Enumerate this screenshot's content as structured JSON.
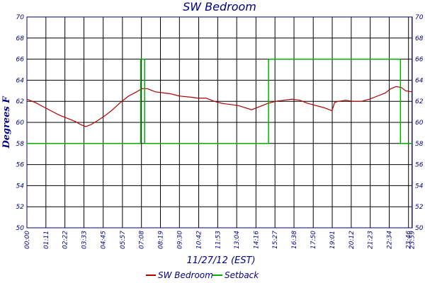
{
  "chart_data": {
    "type": "line",
    "title": "SW Bedroom",
    "ylabel": "Degrees F",
    "xlabel": "11/27/12 (EST)",
    "ylim": [
      50,
      70
    ],
    "yticks": [
      "50",
      "52",
      "54",
      "56",
      "58",
      "60",
      "62",
      "64",
      "66",
      "68",
      "70"
    ],
    "xlim_minutes": [
      0,
      1440
    ],
    "xticks": [
      {
        "label": "00:00",
        "minute": 0
      },
      {
        "label": "01:11",
        "minute": 71
      },
      {
        "label": "02:22",
        "minute": 142
      },
      {
        "label": "03:33",
        "minute": 213
      },
      {
        "label": "04:45",
        "minute": 285
      },
      {
        "label": "05:57",
        "minute": 357
      },
      {
        "label": "07:08",
        "minute": 428
      },
      {
        "label": "08:19",
        "minute": 499
      },
      {
        "label": "09:30",
        "minute": 570
      },
      {
        "label": "10:42",
        "minute": 642
      },
      {
        "label": "11:53",
        "minute": 713
      },
      {
        "label": "13:04",
        "minute": 784
      },
      {
        "label": "14:16",
        "minute": 856
      },
      {
        "label": "15:27",
        "minute": 927
      },
      {
        "label": "16:38",
        "minute": 998
      },
      {
        "label": "17:50",
        "minute": 1070
      },
      {
        "label": "19:01",
        "minute": 1141
      },
      {
        "label": "20:12",
        "minute": 1212
      },
      {
        "label": "21:23",
        "minute": 1283
      },
      {
        "label": "22:34",
        "minute": 1354
      },
      {
        "label": "23:46",
        "minute": 1426
      },
      {
        "label": "23:59",
        "minute": 1439
      }
    ],
    "grid": true,
    "legend": "bottom",
    "series": [
      {
        "name": "SW Bedroom",
        "color": "#b00000",
        "points": [
          [
            0,
            62.2
          ],
          [
            30,
            61.9
          ],
          [
            60,
            61.5
          ],
          [
            90,
            61.1
          ],
          [
            120,
            60.7
          ],
          [
            150,
            60.4
          ],
          [
            180,
            60.1
          ],
          [
            200,
            59.8
          ],
          [
            220,
            59.6
          ],
          [
            240,
            59.8
          ],
          [
            260,
            60.1
          ],
          [
            290,
            60.6
          ],
          [
            320,
            61.2
          ],
          [
            350,
            61.9
          ],
          [
            380,
            62.5
          ],
          [
            410,
            62.9
          ],
          [
            430,
            63.2
          ],
          [
            450,
            63.2
          ],
          [
            480,
            62.9
          ],
          [
            510,
            62.8
          ],
          [
            540,
            62.7
          ],
          [
            570,
            62.5
          ],
          [
            610,
            62.4
          ],
          [
            640,
            62.3
          ],
          [
            670,
            62.3
          ],
          [
            700,
            62.0
          ],
          [
            730,
            61.8
          ],
          [
            760,
            61.7
          ],
          [
            790,
            61.6
          ],
          [
            815,
            61.4
          ],
          [
            840,
            61.2
          ],
          [
            870,
            61.5
          ],
          [
            900,
            61.8
          ],
          [
            930,
            62.0
          ],
          [
            960,
            62.1
          ],
          [
            990,
            62.2
          ],
          [
            1020,
            62.1
          ],
          [
            1050,
            61.8
          ],
          [
            1080,
            61.6
          ],
          [
            1110,
            61.4
          ],
          [
            1130,
            61.2
          ],
          [
            1140,
            61.1
          ],
          [
            1145,
            61.5
          ],
          [
            1150,
            61.9
          ],
          [
            1165,
            62.0
          ],
          [
            1190,
            62.1
          ],
          [
            1220,
            62.0
          ],
          [
            1250,
            62.0
          ],
          [
            1280,
            62.2
          ],
          [
            1310,
            62.5
          ],
          [
            1340,
            62.8
          ],
          [
            1360,
            63.2
          ],
          [
            1380,
            63.4
          ],
          [
            1400,
            63.3
          ],
          [
            1415,
            63.0
          ],
          [
            1439,
            62.9
          ]
        ]
      },
      {
        "name": "Setback",
        "color": "#00b000",
        "points": [
          [
            0,
            58
          ],
          [
            425,
            58
          ],
          [
            425,
            66
          ],
          [
            440,
            66
          ],
          [
            440,
            58
          ],
          [
            903,
            58
          ],
          [
            903,
            66
          ],
          [
            1396,
            66
          ],
          [
            1396,
            58
          ],
          [
            1439,
            58
          ]
        ]
      }
    ]
  }
}
